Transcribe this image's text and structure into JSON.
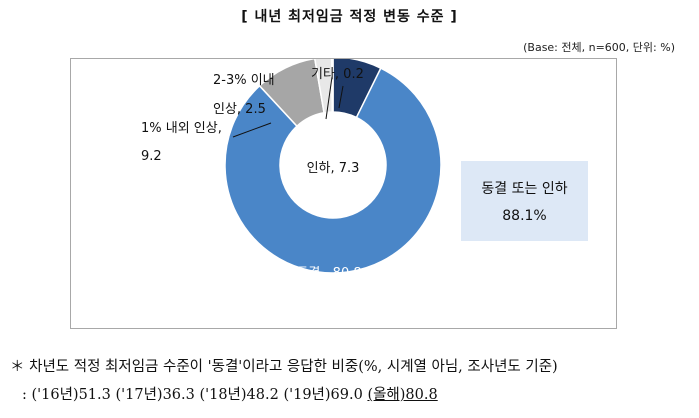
{
  "header": {
    "title": "[ 내년 최저임금 적정 변동 수준 ]",
    "base_note": "(Base: 전체, n=600, 단위: %)"
  },
  "chart_data": {
    "type": "pie",
    "variant": "donut",
    "title": "[ 내년 최저임금 적정 변동 수준 ]",
    "unit": "%",
    "slices": [
      {
        "label": "동결",
        "value": 80.8,
        "color": "#4a86c8",
        "label_text": "동결 , 80.8"
      },
      {
        "label": "1% 내외 인상",
        "value": 9.2,
        "color": "#a6a6a6",
        "label_text": [
          "1% 내외 인상,",
          "9.2"
        ]
      },
      {
        "label": "2-3% 이내 인상",
        "value": 2.5,
        "color": "#e8e8e8",
        "label_text": [
          "2-3% 이내",
          "인상, 2.5"
        ]
      },
      {
        "label": "기타",
        "value": 0.2,
        "color": "#6b6b6b",
        "label_text": "기타, 0.2"
      },
      {
        "label": "인하",
        "value": 7.3,
        "color": "#1f3a68",
        "label_text": "인하, 7.3"
      }
    ]
  },
  "callout": {
    "line1": "동결 또는 인하",
    "line2": "88.1%"
  },
  "footnote": {
    "line1": "＊ 차년도 적정 최저임금 수준이 '동결'이라고 응답한 비중(%, 시계열 아님, 조사년도 기준)",
    "line2_prefix": "  : ('16년)51.3 ('17년)36.3 ('18년)48.2 ('19년)69.0 ",
    "line2_highlight": "(올해)80.8"
  }
}
